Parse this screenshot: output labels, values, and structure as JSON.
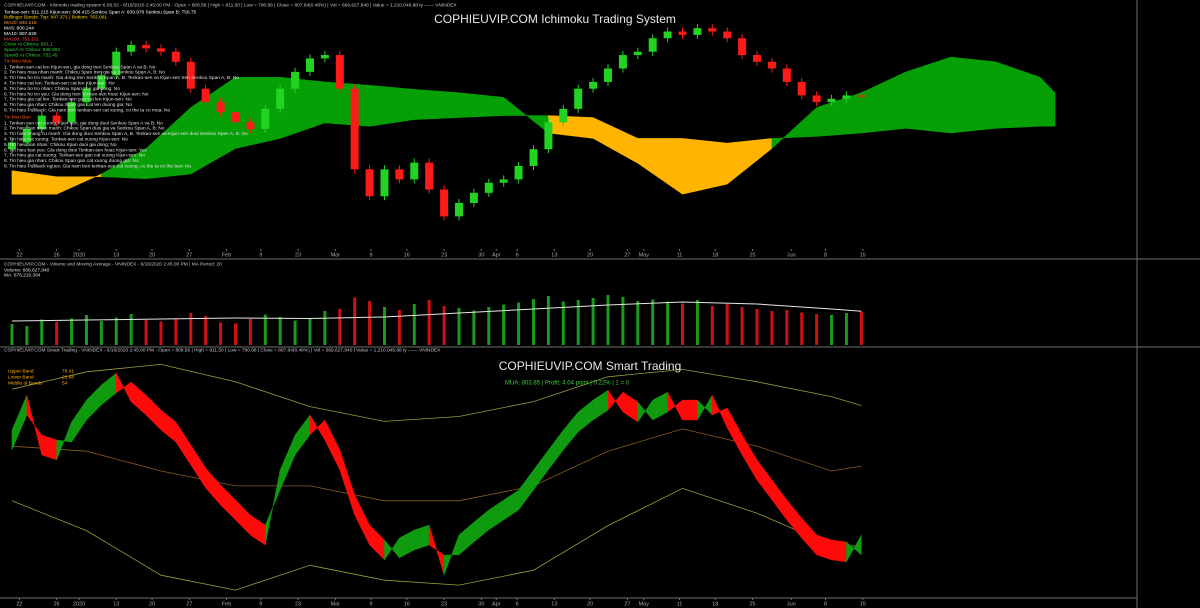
{
  "chart_data": [
    {
      "type": "candlestick",
      "title": "COPHIEUVIP.COM Ichimoku Trading System",
      "header": "COPHIEUVIP.COM - Ichimoku trading system 6.06.02 - 6/16/2020 2:45:00 PM - Open = 808.56 | High = 811.50 | Low = 790.66 | Close = 807.84(0.48%) | Vol = 669,627,840 | Value = 1,210,046.88 ty —— VNINDEX",
      "info": [
        "Tenkan-sen: 811.215   Kijun-sen: 804.415   Senkou Span A: 839.978   Senkou Span B: 750.75",
        "Bollinger Bands: Top: 847.371 | Bottom: 763.061",
        "MA20: 840.218",
        "MA5: 800.244",
        "MA10: 807.626",
        "MA200: 751.101",
        "Close At Chikou: 901.1",
        "SpanA At Chikou: 898.892",
        "SpanB At Chikou: 752.45"
      ],
      "buy_title": "Tin hieu Mua",
      "buy_signals": [
        "1. Tenkan-sen cat len Kijun-sen, gia dong tren Senkou Span A va B: No",
        "2. Tin hieu mua nhan manh: Chikou Span tren gia va Senkou Span A, B: No",
        "3. Tin hieu ho tro manh: Gia dong tren Senkou Span A, B. Tenkan-sen va Kijun-sen tren Senkou Span A, B: No",
        "4. Tin hieu cat len: Tenkan-sen cat len Kijun-sen: No",
        "5. Tin hieu ho tro nhan: Chikou Span tren gia dong: No",
        "6. Tin hieu ho tro yeu: Gia dong tren Tenkan-sen hoac Kijun-sen: No",
        "7. Tin hieu gia cat len: Tenkan-sen gan cat len Kijun-sen: No",
        "8. Tin hieu gia nhan: Chikou Span gan cat len duong gia: No",
        "9. Tin hieu Pullback: Gia nam tren tenkan-sen cat xuong, co the ta co mua: No"
      ],
      "sell_title": "Tin hieu Ban",
      "sell_signals": [
        "1. Tenkan-sen cat xuong Kijun-sen, gia dong duoi Senkou Span A va B: No",
        "2. Tin hieu ban nhan manh: Chikou Span duoi gia va Senkou Span A, B: No",
        "3. Tin hieu khang cu manh: Gia dong duoi Senkou Span A, B. Tenkan-sen va Kijun-sen duoi Senkou Span A, B: No",
        "4. Tin hieu cat xuong: Tenkan-sen cat xuong Kijun-sen: No",
        "5. Tin hieu ban nhan: Chikou Span duoi gia dong: No",
        "6. Tin hieu ban yeu: Gia dong duoi Tenkan-sen hoac Kijun-sen: Yes",
        "7. Tin hieu gia cat xuong: Tenkan-sen gan cat xuong Kijun-sen: No",
        "8. Tin hieu gia nhan: Chikou Span gan cat xuong duong gia: No",
        "9. Tin hieu Pullback nguoc: Gia nam tren tenkan-sen cat xuong, co the ta co the ban: No"
      ],
      "xlim": [
        -0.5,
        75.5
      ],
      "xticks": [
        {
          "value": 0.5,
          "label": "22"
        },
        {
          "value": 3,
          "label": "26"
        },
        {
          "value": 4.5,
          "label": "2020"
        },
        {
          "value": 7,
          "label": "13"
        },
        {
          "value": 9.4,
          "label": "20"
        },
        {
          "value": 11.9,
          "label": "27"
        },
        {
          "value": 14.4,
          "label": "Feb"
        },
        {
          "value": 16.7,
          "label": "9"
        },
        {
          "value": 19.2,
          "label": "23"
        },
        {
          "value": 21.7,
          "label": "Mar"
        },
        {
          "value": 24.1,
          "label": "9"
        },
        {
          "value": 26.5,
          "label": "16"
        },
        {
          "value": 29,
          "label": "23"
        },
        {
          "value": 31.5,
          "label": "30"
        },
        {
          "value": 32.5,
          "label": "Apr"
        },
        {
          "value": 33.9,
          "label": "6"
        },
        {
          "value": 36.4,
          "label": "13"
        },
        {
          "value": 38.8,
          "label": "20"
        },
        {
          "value": 41.3,
          "label": "27"
        },
        {
          "value": 42.4,
          "label": "May"
        },
        {
          "value": 44.8,
          "label": "11"
        },
        {
          "value": 47.2,
          "label": "18"
        },
        {
          "value": 49.7,
          "label": "25"
        },
        {
          "value": 52.3,
          "label": "Jun"
        },
        {
          "value": 54.6,
          "label": "8"
        },
        {
          "value": 57.1,
          "label": "15"
        }
      ],
      "ylim": [
        640,
        1000
      ],
      "open": [
        790,
        800,
        820,
        840,
        830,
        860,
        880,
        900,
        935,
        945,
        940,
        935,
        920,
        880,
        860,
        845,
        830,
        820,
        850,
        880,
        905,
        925,
        930,
        880,
        760,
        720,
        760,
        745,
        770,
        730,
        690,
        710,
        725,
        740,
        745,
        765,
        790,
        830,
        850,
        880,
        890,
        910,
        930,
        935,
        955,
        965,
        960,
        970,
        965,
        955,
        930,
        920,
        910,
        890,
        870,
        860,
        865,
        870
      ],
      "high": [
        806,
        826,
        846,
        846,
        866,
        886,
        906,
        941,
        951,
        951,
        946,
        941,
        926,
        886,
        866,
        851,
        836,
        856,
        886,
        911,
        931,
        936,
        936,
        886,
        766,
        766,
        766,
        776,
        776,
        736,
        716,
        731,
        746,
        751,
        771,
        796,
        836,
        856,
        886,
        896,
        916,
        936,
        941,
        961,
        971,
        971,
        976,
        976,
        971,
        961,
        936,
        926,
        916,
        896,
        876,
        871,
        876,
        876
      ],
      "low": [
        784,
        794,
        814,
        824,
        824,
        854,
        874,
        894,
        929,
        934,
        929,
        914,
        874,
        854,
        839,
        824,
        814,
        814,
        844,
        874,
        899,
        919,
        874,
        754,
        714,
        714,
        739,
        739,
        724,
        684,
        684,
        704,
        719,
        734,
        739,
        759,
        784,
        824,
        844,
        874,
        884,
        904,
        924,
        929,
        949,
        954,
        954,
        959,
        949,
        924,
        914,
        904,
        884,
        864,
        854,
        854,
        859,
        862
      ],
      "close": [
        800,
        820,
        840,
        830,
        860,
        880,
        900,
        935,
        945,
        940,
        935,
        920,
        880,
        860,
        845,
        830,
        820,
        850,
        880,
        905,
        925,
        930,
        880,
        760,
        720,
        760,
        745,
        770,
        730,
        690,
        710,
        725,
        740,
        745,
        765,
        790,
        830,
        850,
        880,
        890,
        910,
        930,
        935,
        955,
        965,
        960,
        970,
        965,
        955,
        930,
        920,
        910,
        890,
        870,
        860,
        865,
        870,
        868
      ],
      "up_color": "#22d322",
      "down_color": "#ff1a1a",
      "cloud": {
        "x": [
          0,
          3,
          6,
          9,
          12,
          15,
          18,
          21,
          24,
          27,
          30,
          33,
          36,
          39,
          42,
          45,
          48,
          51,
          54,
          57,
          60,
          63,
          66,
          69,
          70
        ],
        "span_a": [
          723,
          723,
          753,
          791,
          852,
          897,
          897,
          890,
          885,
          879,
          874,
          867,
          814,
          806,
          769,
          723,
          738,
          791,
          852,
          874,
          905,
          927,
          920,
          897,
          874
        ],
        "span_b": [
          758,
          749,
          749,
          746,
          753,
          791,
          806,
          829,
          824,
          834,
          837,
          840,
          840,
          837,
          806,
          806,
          799,
          806,
          809,
          814,
          821,
          814,
          821,
          824,
          824
        ],
        "bull_color": "#06a006",
        "bear_color": "#ffb400"
      }
    },
    {
      "type": "volume",
      "header": "COPHIEUVIP.COM - Volume and Moving Average - VNINDEX - 6/16/2020 2:45:00 PM | MA Period: 20",
      "info": [
        "Volume: 669,627,840",
        "MA: 676,210,384"
      ],
      "xlim": [
        -0.5,
        75.5
      ],
      "ylim": [
        0,
        1500000000
      ],
      "values": [
        420000000,
        380000000,
        510000000,
        460000000,
        530000000,
        600000000,
        480000000,
        550000000,
        620000000,
        500000000,
        470000000,
        520000000,
        640000000,
        580000000,
        450000000,
        430000000,
        520000000,
        610000000,
        560000000,
        490000000,
        520000000,
        680000000,
        720000000,
        950000000,
        880000000,
        760000000,
        700000000,
        820000000,
        900000000,
        780000000,
        740000000,
        690000000,
        760000000,
        810000000,
        850000000,
        920000000,
        980000000,
        870000000,
        900000000,
        940000000,
        1000000000,
        960000000,
        880000000,
        910000000,
        870000000,
        830000000,
        900000000,
        780000000,
        820000000,
        760000000,
        720000000,
        680000000,
        700000000,
        650000000,
        620000000,
        600000000,
        640000000,
        669627840
      ],
      "ma": {
        "x": [
          0,
          5,
          10,
          15,
          20,
          25,
          30,
          35,
          40,
          45,
          50,
          55,
          57
        ],
        "values": [
          480000000,
          500000000,
          520000000,
          540000000,
          530000000,
          560000000,
          640000000,
          720000000,
          800000000,
          860000000,
          820000000,
          720000000,
          676210384
        ],
        "color": "#e6e6e6"
      }
    },
    {
      "type": "ribbon",
      "title": "COPHIEUVIP.COM Smart Trading",
      "header": "COPHIEUVIP.COM Smart Trading - VNINDEX - 6/16/2020 2:45:00 PM - Open = 808.56 | High = 811.50 | Low = 790.66 | Close = 807.84(0.48%) | Vol = 669,627,840 | Value = 1,210,046.88 ty —— VNINDEX",
      "annotation": "MUA: 803.85 | Profit: 4.04 point | 0.22% | 1 = 0",
      "xlim": [
        -0.5,
        75.5
      ],
      "xticks": [
        {
          "value": 0.5,
          "label": "22"
        },
        {
          "value": 3,
          "label": "26"
        },
        {
          "value": 4.5,
          "label": "2020"
        },
        {
          "value": 7,
          "label": "13"
        },
        {
          "value": 9.4,
          "label": "20"
        },
        {
          "value": 11.9,
          "label": "27"
        },
        {
          "value": 14.4,
          "label": "Feb"
        },
        {
          "value": 16.7,
          "label": "9"
        },
        {
          "value": 19.2,
          "label": "23"
        },
        {
          "value": 21.7,
          "label": "Mar"
        },
        {
          "value": 24.1,
          "label": "9"
        },
        {
          "value": 26.5,
          "label": "16"
        },
        {
          "value": 29,
          "label": "23"
        },
        {
          "value": 31.5,
          "label": "30"
        },
        {
          "value": 32.5,
          "label": "Apr"
        },
        {
          "value": 33.9,
          "label": "6"
        },
        {
          "value": 36.4,
          "label": "13"
        },
        {
          "value": 38.8,
          "label": "20"
        },
        {
          "value": 41.3,
          "label": "27"
        },
        {
          "value": 42.4,
          "label": "May"
        },
        {
          "value": 44.8,
          "label": "11"
        },
        {
          "value": 47.2,
          "label": "18"
        },
        {
          "value": 49.7,
          "label": "25"
        },
        {
          "value": 52.3,
          "label": "Jun"
        },
        {
          "value": 54.6,
          "label": "8"
        },
        {
          "value": 57.1,
          "label": "15"
        }
      ],
      "ylim": [
        0,
        100
      ],
      "ribbon": {
        "lead": [
          68.5,
          82.6,
          58.5,
          56.5,
          71.7,
          80.6,
          86.7,
          91.5,
          79.9,
          74.6,
          68.6,
          63.7,
          54.5,
          45.2,
          38.3,
          32.3,
          26.2,
          22.2,
          52.4,
          66.5,
          74.6,
          64.5,
          52.5,
          34.3,
          22.2,
          16.2,
          25,
          28.2,
          30.2,
          10.1,
          26.2,
          31.4,
          36.3,
          40.3,
          44.3,
          52.4,
          60.5,
          68.5,
          75.8,
          80.6,
          84.6,
          75.8,
          71.8,
          80.6,
          83.8,
          72.6,
          72.6,
          82.6,
          69.4,
          58.5,
          48.4,
          40.4,
          32.3,
          25,
          18.2,
          16.2,
          15.4,
          26.2
        ],
        "lag": [
          60.5,
          74.6,
          66.5,
          64.5,
          63.7,
          72.6,
          78.7,
          83.5,
          87.9,
          82.6,
          76.6,
          71.7,
          62.5,
          53.2,
          46.3,
          40.3,
          34.2,
          30.2,
          44.4,
          58.5,
          66.6,
          72.5,
          60.5,
          42.3,
          30.2,
          24.2,
          17,
          20.2,
          22.2,
          18.1,
          18.2,
          23.4,
          28.3,
          32.3,
          36.3,
          44.4,
          52.5,
          60.5,
          67.8,
          72.6,
          76.6,
          83.8,
          79.8,
          72.6,
          75.8,
          80.6,
          80.6,
          74.6,
          77.4,
          66.5,
          56.4,
          48.4,
          40.3,
          33,
          26.2,
          24.2,
          23.4,
          18.2
        ],
        "up_color": "#0f9a0f",
        "down_color": "#ff0a0a"
      },
      "series": [
        {
          "name": "Upper Band",
          "color": "#9c9a3a",
          "last": 78.41,
          "x": [
            0,
            5,
            10,
            15,
            20,
            25,
            30,
            35,
            40,
            45,
            50,
            55,
            57
          ],
          "values": [
            85,
            92,
            95,
            88,
            78,
            72,
            74,
            80,
            90,
            93,
            88,
            82,
            78.41
          ]
        },
        {
          "name": "Lower Band",
          "color": "#9c9a3a",
          "last": 21.68,
          "x": [
            0,
            5,
            10,
            15,
            20,
            25,
            30,
            35,
            40,
            45,
            50,
            55,
            57
          ],
          "values": [
            40,
            28,
            10,
            4,
            14,
            8,
            6,
            12,
            30,
            45,
            35,
            22,
            21.68
          ]
        },
        {
          "name": "Middle of Bands",
          "color": "#8a5a22",
          "last": 54,
          "x": [
            0,
            5,
            10,
            15,
            20,
            25,
            30,
            35,
            40,
            45,
            50,
            55,
            57
          ],
          "values": [
            62,
            60,
            52,
            46,
            46,
            40,
            40,
            46,
            60,
            69,
            62,
            52,
            54
          ]
        }
      ]
    }
  ]
}
